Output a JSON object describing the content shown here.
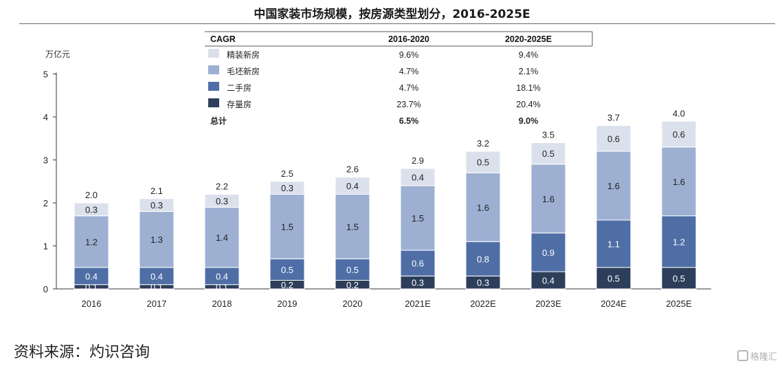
{
  "title": "中国家装市场规模，按房源类型划分，2016-2025E",
  "source": "资料来源：灼识咨询",
  "watermark": "格隆汇",
  "colors": {
    "accent": "#2c3e5a",
    "light": "#dbe1ec",
    "mid": "#9db0d2",
    "blue": "#4f6ea6",
    "dark": "#2c3e5a"
  },
  "chart_data": {
    "type": "bar",
    "stacked": true,
    "ylabel": "万亿元",
    "ylim": [
      0,
      5
    ],
    "yticks": [
      "0",
      "1",
      "2",
      "3",
      "4",
      "5"
    ],
    "categories": [
      "2016",
      "2017",
      "2018",
      "2019",
      "2020",
      "2021E",
      "2022E",
      "2023E",
      "2024E",
      "2025E"
    ],
    "series": [
      {
        "name": "存量房",
        "color": "#2c3e5a",
        "values": [
          0.1,
          0.1,
          0.1,
          0.2,
          0.2,
          0.3,
          0.3,
          0.4,
          0.5,
          0.5
        ]
      },
      {
        "name": "二手房",
        "color": "#4f6ea6",
        "values": [
          0.4,
          0.4,
          0.4,
          0.5,
          0.5,
          0.6,
          0.8,
          0.9,
          1.1,
          1.2
        ]
      },
      {
        "name": "毛坯新房",
        "color": "#9db0d2",
        "values": [
          1.2,
          1.3,
          1.4,
          1.5,
          1.5,
          1.5,
          1.6,
          1.6,
          1.6,
          1.6
        ]
      },
      {
        "name": "精装新房",
        "color": "#dbe1ec",
        "values": [
          0.3,
          0.3,
          0.3,
          0.3,
          0.4,
          0.4,
          0.5,
          0.5,
          0.6,
          0.6
        ]
      }
    ],
    "totals": [
      2.0,
      2.1,
      2.2,
      2.5,
      2.6,
      2.9,
      3.2,
      3.5,
      3.7,
      4.0
    ],
    "cagr_table": {
      "header": [
        "CAGR",
        "2016-2020",
        "2020-2025E"
      ],
      "rows": [
        {
          "label": "精装新房",
          "color": "#dbe1ec",
          "a": "9.6%",
          "b": "9.4%"
        },
        {
          "label": "毛坯新房",
          "color": "#9db0d2",
          "a": "4.7%",
          "b": "2.1%"
        },
        {
          "label": "二手房",
          "color": "#4f6ea6",
          "a": "4.7%",
          "b": "18.1%"
        },
        {
          "label": "存量房",
          "color": "#2c3e5a",
          "a": "23.7%",
          "b": "20.4%"
        },
        {
          "label": "总计",
          "color": "",
          "a": "6.5%",
          "b": "9.0%",
          "bold": true
        }
      ]
    }
  }
}
